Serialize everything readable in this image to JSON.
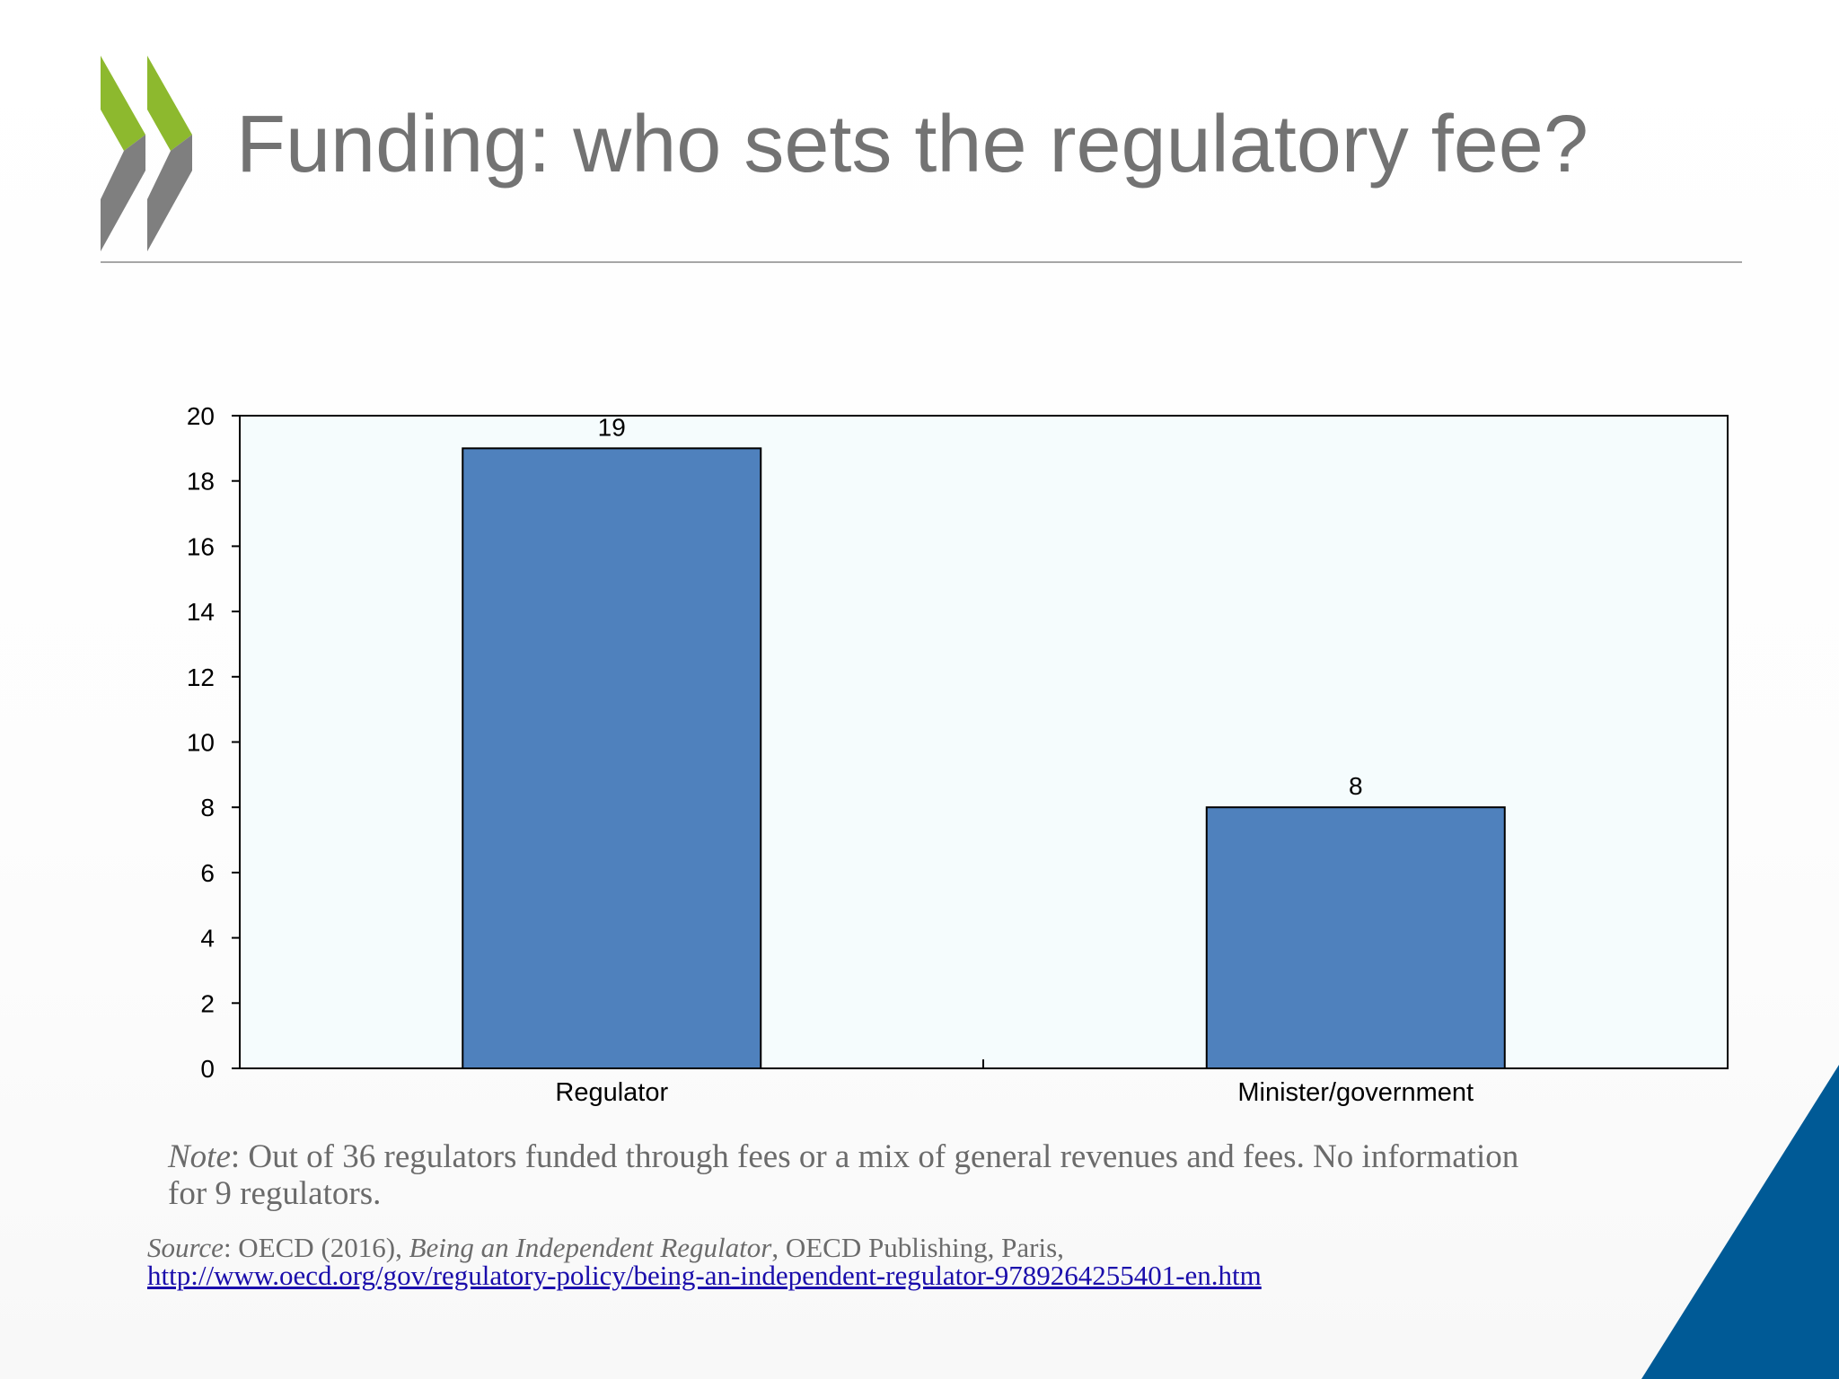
{
  "slide": {
    "title": "Funding: who sets the regulatory fee?",
    "colors": {
      "title": "#737373",
      "logo_green": "#8db92e",
      "logo_grey": "#7f7f7f",
      "corner_blue": "#005a96"
    },
    "logo_icon": "oecd-chevrons-icon",
    "corner_icon": "blue-corner-triangle"
  },
  "chart_data": {
    "type": "bar",
    "categories": [
      "Regulator",
      "Minister/government"
    ],
    "values": [
      19,
      8
    ],
    "data_labels": [
      "19",
      "8"
    ],
    "title": "",
    "xlabel": "",
    "ylabel": "",
    "ylim": [
      0,
      20
    ],
    "yticks": [
      0,
      2,
      4,
      6,
      8,
      10,
      12,
      14,
      16,
      18,
      20
    ],
    "grid": false,
    "legend": "none",
    "colors": {
      "bar": "#4f81bd",
      "plot_bg": "#f5fcfd",
      "axis": "#000000"
    }
  },
  "note": {
    "label": "Note",
    "text": ": Out of 36 regulators funded through fees or a mix of general revenues and fees. No information for 9 regulators."
  },
  "source": {
    "label": "Source",
    "text_before": ": OECD (2016), ",
    "publication": "Being an Independent Regulator",
    "text_after": ", OECD Publishing, Paris,",
    "link": "http://www.oecd.org/gov/regulatory-policy/being-an-independent-regulator-9789264255401-en.htm"
  }
}
